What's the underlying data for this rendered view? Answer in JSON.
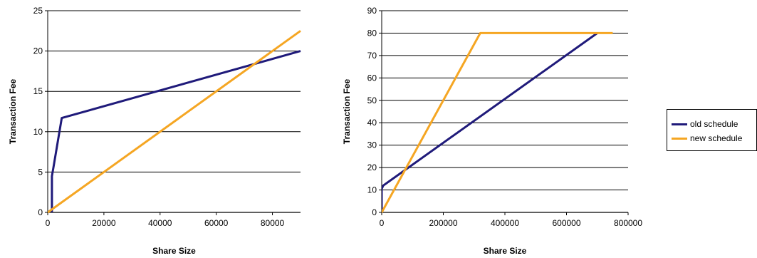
{
  "colors": {
    "old_schedule": "#1f1a7a",
    "new_schedule": "#f5a623",
    "gridline": "#000000"
  },
  "legend": {
    "placement": "right",
    "items": [
      {
        "label": "old schedule",
        "color_key": "old_schedule"
      },
      {
        "label": "new schedule",
        "color_key": "new_schedule"
      }
    ]
  },
  "chart_data": [
    {
      "type": "line",
      "title": "",
      "xlabel": "Share Size",
      "ylabel": "Transaction Fee",
      "xlim": [
        0,
        90000
      ],
      "ylim": [
        0,
        25
      ],
      "x_ticks": [
        "0",
        "20000",
        "40000",
        "60000",
        "80000"
      ],
      "x_tick_values": [
        0,
        20000,
        40000,
        60000,
        80000
      ],
      "y_ticks": [
        "0",
        "5",
        "10",
        "15",
        "20",
        "25"
      ],
      "y_tick_values": [
        0,
        5,
        10,
        15,
        20,
        25
      ],
      "grid": true,
      "series": [
        {
          "name": "old schedule",
          "color_key": "old_schedule",
          "x": [
            1500,
            1500,
            2000,
            5000,
            90000
          ],
          "y": [
            0,
            4.5,
            5.5,
            11.7,
            20
          ]
        },
        {
          "name": "new schedule",
          "color_key": "new_schedule",
          "x": [
            0,
            90000
          ],
          "y": [
            0,
            22.5
          ]
        }
      ]
    },
    {
      "type": "line",
      "title": "",
      "xlabel": "Share Size",
      "ylabel": "Transaction Fee",
      "xlim": [
        0,
        800000
      ],
      "ylim": [
        0,
        90
      ],
      "x_ticks": [
        "0",
        "200000",
        "400000",
        "600000",
        "800000"
      ],
      "x_tick_values": [
        0,
        200000,
        400000,
        600000,
        800000
      ],
      "y_ticks": [
        "0",
        "10",
        "20",
        "30",
        "40",
        "50",
        "60",
        "70",
        "80",
        "90"
      ],
      "y_tick_values": [
        0,
        10,
        20,
        30,
        40,
        50,
        60,
        70,
        80,
        90
      ],
      "grid": true,
      "series": [
        {
          "name": "old schedule",
          "color_key": "old_schedule",
          "x": [
            0,
            0,
            5000,
            700000
          ],
          "y": [
            0,
            10.5,
            12,
            80
          ]
        },
        {
          "name": "new schedule",
          "color_key": "new_schedule",
          "x": [
            0,
            320000,
            750000
          ],
          "y": [
            0,
            80,
            80
          ]
        }
      ]
    }
  ]
}
